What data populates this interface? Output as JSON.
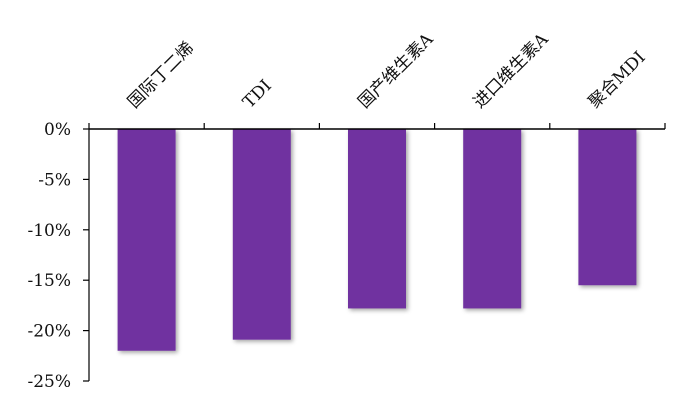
{
  "chart_data": {
    "type": "bar",
    "categories": [
      "国际丁二烯",
      "TDI",
      "国产维生素A",
      "进口维生素A",
      "聚合MDI"
    ],
    "values": [
      -22.0,
      -20.9,
      -17.8,
      -17.8,
      -15.5
    ],
    "y_ticks": [
      "0%",
      "-5%",
      "-10%",
      "-15%",
      "-20%",
      "-25%"
    ],
    "ylim": [
      -25,
      0
    ],
    "grid": false,
    "legend": "none",
    "bar_color": "#7030A0",
    "title": "",
    "xlabel": "",
    "ylabel": ""
  }
}
